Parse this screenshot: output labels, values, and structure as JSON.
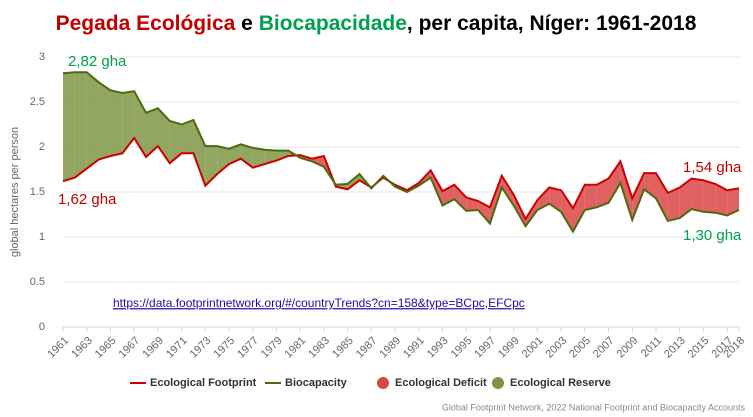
{
  "chart_data": {
    "type": "line",
    "title_parts": [
      {
        "text": "Pegada Ecológica",
        "color": "#c00000"
      },
      {
        "text": " e ",
        "color": "#000000"
      },
      {
        "text": "Biocapacidade",
        "color": "#00a050"
      },
      {
        "text": ", per capita, Níger: 1961-2018",
        "color": "#000000"
      }
    ],
    "y_label": "global hectares per person",
    "x": [
      1961,
      1962,
      1963,
      1964,
      1965,
      1966,
      1967,
      1968,
      1969,
      1970,
      1971,
      1972,
      1973,
      1974,
      1975,
      1976,
      1977,
      1978,
      1979,
      1980,
      1981,
      1982,
      1983,
      1984,
      1985,
      1986,
      1987,
      1988,
      1989,
      1990,
      1991,
      1992,
      1993,
      1994,
      1995,
      1996,
      1997,
      1998,
      1999,
      2000,
      2001,
      2002,
      2003,
      2004,
      2005,
      2006,
      2007,
      2008,
      2009,
      2010,
      2011,
      2012,
      2013,
      2014,
      2015,
      2016,
      2017,
      2018
    ],
    "xlim": [
      1961,
      2018
    ],
    "xticks": [
      1961,
      1963,
      1965,
      1967,
      1969,
      1971,
      1973,
      1975,
      1977,
      1979,
      1981,
      1983,
      1985,
      1987,
      1989,
      1991,
      1993,
      1995,
      1997,
      1999,
      2001,
      2003,
      2005,
      2007,
      2009,
      2011,
      2013,
      2015,
      2017,
      2018
    ],
    "ylim": [
      0,
      3
    ],
    "yticks": [
      0,
      0.5,
      1,
      1.5,
      2,
      2.5,
      3
    ],
    "grid": true,
    "series": [
      {
        "name": "Ecological Footprint",
        "color": "#cc0000",
        "values": [
          1.62,
          1.66,
          1.76,
          1.86,
          1.9,
          1.93,
          2.1,
          1.89,
          2.01,
          1.82,
          1.93,
          1.93,
          1.57,
          1.7,
          1.81,
          1.87,
          1.77,
          1.81,
          1.85,
          1.9,
          1.91,
          1.87,
          1.9,
          1.56,
          1.53,
          1.63,
          1.55,
          1.66,
          1.58,
          1.52,
          1.6,
          1.74,
          1.51,
          1.58,
          1.44,
          1.4,
          1.33,
          1.68,
          1.47,
          1.2,
          1.41,
          1.55,
          1.52,
          1.32,
          1.58,
          1.58,
          1.65,
          1.84,
          1.43,
          1.71,
          1.71,
          1.49,
          1.55,
          1.65,
          1.63,
          1.59,
          1.52,
          1.54
        ]
      },
      {
        "name": "Biocapacity",
        "color": "#4b6b10",
        "values": [
          2.82,
          2.83,
          2.83,
          2.72,
          2.63,
          2.6,
          2.62,
          2.38,
          2.43,
          2.29,
          2.25,
          2.3,
          2.01,
          2.01,
          1.98,
          2.03,
          1.99,
          1.97,
          1.96,
          1.96,
          1.88,
          1.84,
          1.78,
          1.58,
          1.59,
          1.7,
          1.54,
          1.68,
          1.56,
          1.5,
          1.57,
          1.66,
          1.35,
          1.42,
          1.29,
          1.3,
          1.15,
          1.55,
          1.35,
          1.12,
          1.3,
          1.37,
          1.28,
          1.06,
          1.3,
          1.33,
          1.38,
          1.6,
          1.19,
          1.53,
          1.43,
          1.18,
          1.21,
          1.31,
          1.28,
          1.27,
          1.24,
          1.3
        ]
      }
    ],
    "areas": [
      {
        "name": "Ecological Deficit",
        "color": "#d94545"
      },
      {
        "name": "Ecological Reserve",
        "color": "#7f9545"
      }
    ],
    "annotations": [
      {
        "text": "2,82 gha",
        "color": "#00a050"
      },
      {
        "text": "1,62 gha",
        "color": "#c00000"
      },
      {
        "text": "1,54 gha",
        "color": "#c00000"
      },
      {
        "text": "1,30 gha",
        "color": "#00a050"
      }
    ],
    "link": "https://data.footprintnetwork.org/#/countryTrends?cn=158&type=BCpc,EFCpc",
    "source": "Global Footprint Network, 2022 National Footprint and Biocapacity Accounts"
  }
}
